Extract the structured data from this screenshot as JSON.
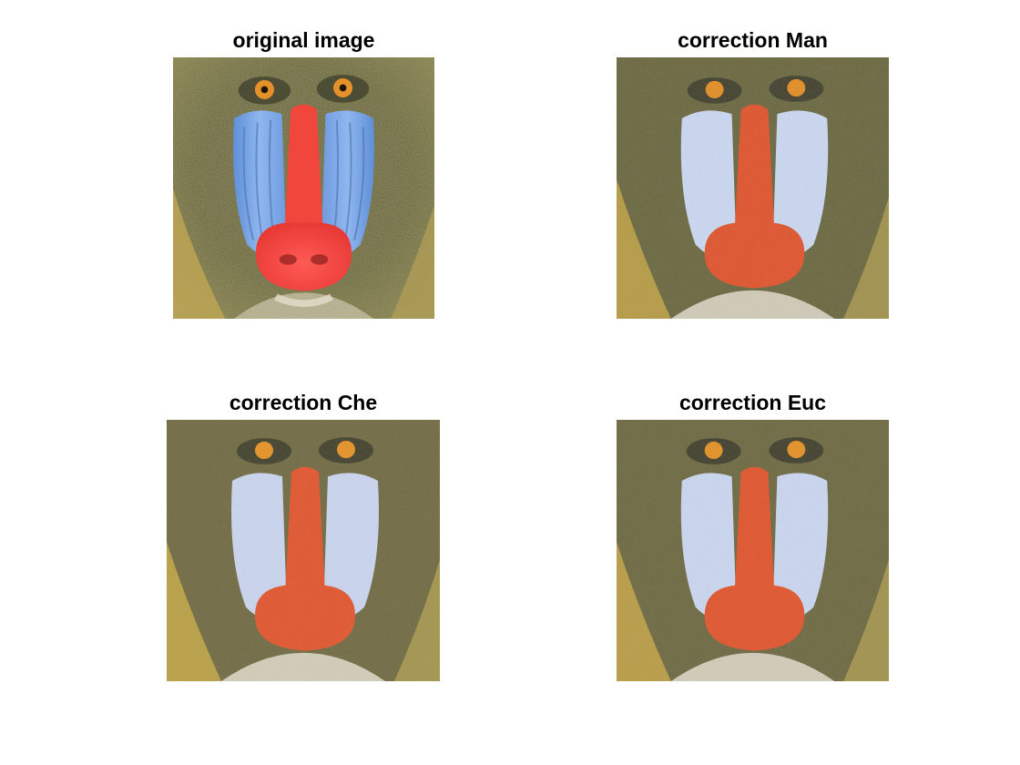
{
  "panels": [
    {
      "id": "original",
      "title": "original image",
      "kind": "original"
    },
    {
      "id": "man",
      "title": "correction Man",
      "kind": "corrected"
    },
    {
      "id": "che",
      "title": "correction Che",
      "kind": "corrected"
    },
    {
      "id": "euc",
      "title": "correction Euc",
      "kind": "corrected"
    }
  ],
  "colors": {
    "fur_dark": "#5b5a3a",
    "fur_light": "#a59a55",
    "cheek_blue": "#7fa9e6",
    "cheek_blue_corrected": "#c9d6ee",
    "nose_red": "#f0463c",
    "nose_red_corrected": "#dd5a35",
    "eye_orange": "#e4912a",
    "beard_yellow": "#d8b64c"
  }
}
